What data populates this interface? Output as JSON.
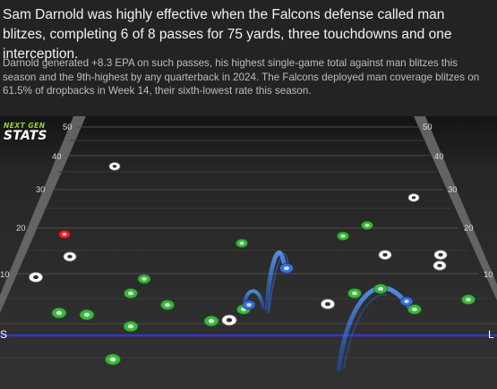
{
  "headline": "Sam Darnold was highly effective when the Falcons defense called man blitzes, completing 6 of 8 passes for 75 yards, three touchdowns and one interception.",
  "subtext": "Darnold generated +8.3 EPA on such passes, his highest single-game total against man blitzes this season and the 9th-highest by any quarterback in 2024. The Falcons deployed man coverage blitzes on 61.5% of dropbacks in Week 14, their sixth-lowest rate this season.",
  "logo": {
    "line1": "NEXT GEN",
    "line2": "STATS"
  },
  "field": {
    "yard_labels_left": [
      "50",
      "40",
      "30",
      "20",
      "10"
    ],
    "yard_labels_right": [
      "50",
      "40",
      "30",
      "20",
      "10"
    ],
    "line_of_scrimmage_left": "S",
    "line_of_scrimmage_right": "L",
    "colors": {
      "turf": "#2b2b2b",
      "offense": "#3cb53c",
      "defense_man": "#ffffff",
      "blitzer": "#e02020",
      "completion": "#3a6fd8",
      "los_line": "#2c35d6"
    }
  }
}
